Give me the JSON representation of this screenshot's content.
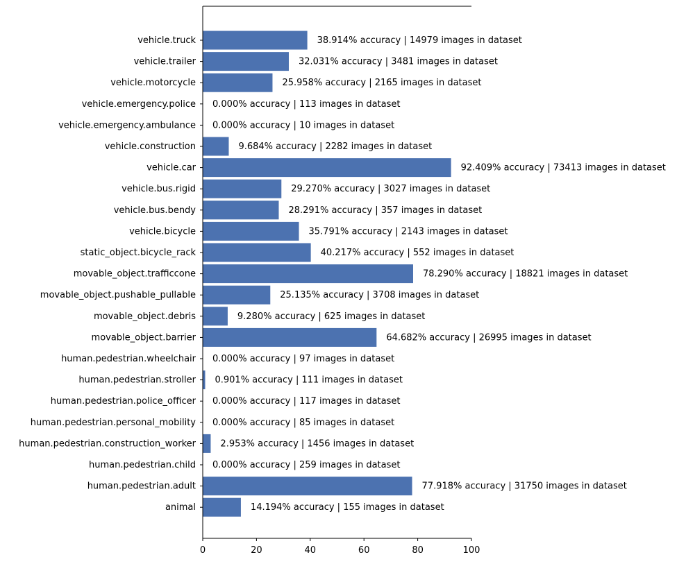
{
  "chart_data": {
    "type": "bar",
    "orientation": "horizontal",
    "title": "",
    "xlabel": "",
    "ylabel": "",
    "xlim": [
      0,
      100
    ],
    "xticks": [
      0,
      20,
      40,
      60,
      80,
      100
    ],
    "grid": false,
    "legend": "none",
    "bar_color": "#4c72b0",
    "categories": [
      "vehicle.truck",
      "vehicle.trailer",
      "vehicle.motorcycle",
      "vehicle.emergency.police",
      "vehicle.emergency.ambulance",
      "vehicle.construction",
      "vehicle.car",
      "vehicle.bus.rigid",
      "vehicle.bus.bendy",
      "vehicle.bicycle",
      "static_object.bicycle_rack",
      "movable_object.trafficcone",
      "movable_object.pushable_pullable",
      "movable_object.debris",
      "movable_object.barrier",
      "human.pedestrian.wheelchair",
      "human.pedestrian.stroller",
      "human.pedestrian.police_officer",
      "human.pedestrian.personal_mobility",
      "human.pedestrian.construction_worker",
      "human.pedestrian.child",
      "human.pedestrian.adult",
      "animal"
    ],
    "values": [
      38.914,
      32.031,
      25.958,
      0.0,
      0.0,
      9.684,
      92.409,
      29.27,
      28.291,
      35.791,
      40.217,
      78.29,
      25.135,
      9.28,
      64.682,
      0.0,
      0.901,
      0.0,
      0.0,
      2.953,
      0.0,
      77.918,
      14.194
    ],
    "data_labels": [
      "38.914% accuracy | 14979 images in dataset",
      "32.031% accuracy | 3481 images in dataset",
      "25.958% accuracy | 2165 images in dataset",
      "0.000% accuracy | 113 images in dataset",
      "0.000% accuracy | 10 images in dataset",
      "9.684% accuracy | 2282 images in dataset",
      "92.409% accuracy | 73413 images in dataset",
      "29.270% accuracy | 3027 images in dataset",
      "28.291% accuracy | 357 images in dataset",
      "35.791% accuracy | 2143 images in dataset",
      "40.217% accuracy | 552 images in dataset",
      "78.290% accuracy | 18821 images in dataset",
      "25.135% accuracy | 3708 images in dataset",
      "9.280% accuracy | 625 images in dataset",
      "64.682% accuracy | 26995 images in dataset",
      "0.000% accuracy | 97 images in dataset",
      "0.901% accuracy | 111 images in dataset",
      "0.000% accuracy | 117 images in dataset",
      "0.000% accuracy | 85 images in dataset",
      "2.953% accuracy | 1456 images in dataset",
      "0.000% accuracy | 259 images in dataset",
      "77.918% accuracy | 31750 images in dataset",
      "14.194% accuracy | 155 images in dataset"
    ]
  }
}
